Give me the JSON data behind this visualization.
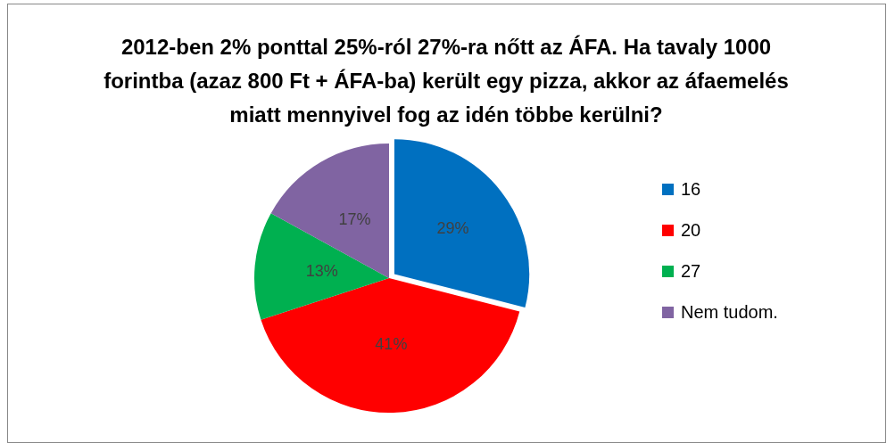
{
  "chart_data": {
    "type": "pie",
    "title": "2012-ben 2% ponttal 25%-ról 27%-ra nőtt az ÁFA. Ha tavaly 1000 forintba (azaz 800 Ft + ÁFA-ba) került egy pizza, akkor az áfaemelés miatt mennyivel fog az idén többe kerülni?",
    "categories": [
      "16",
      "20",
      "27",
      "Nem tudom."
    ],
    "values": [
      29,
      41,
      13,
      17
    ],
    "value_labels": [
      "29%",
      "41%",
      "13%",
      "17%"
    ],
    "colors": [
      "#0070c0",
      "#ff0000",
      "#00b050",
      "#8064a2"
    ],
    "legend": "right"
  }
}
